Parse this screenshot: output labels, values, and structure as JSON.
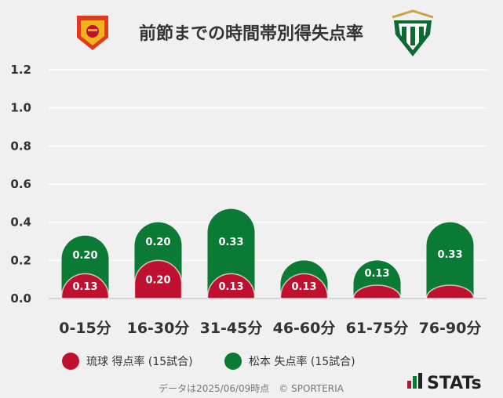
{
  "chart_data": {
    "type": "bar",
    "title": "前節までの時間帯別得失点率",
    "categories": [
      "0-15分",
      "16-30分",
      "31-45分",
      "46-60分",
      "61-75分",
      "76-90分"
    ],
    "series": [
      {
        "name": "琉球 得点率 (15試合)",
        "color": "#c0102f",
        "values": [
          0.13,
          0.2,
          0.13,
          0.13,
          0.07,
          0.07
        ],
        "labels": [
          "0.13",
          "0.20",
          "0.13",
          "0.13",
          "",
          ""
        ]
      },
      {
        "name": "松本 失点率 (15試合)",
        "color": "#0a7a35",
        "values": [
          0.33,
          0.4,
          0.47,
          0.2,
          0.2,
          0.4
        ],
        "labels": [
          "0.20",
          "0.20",
          "0.33",
          "",
          "0.13",
          "0.33"
        ]
      }
    ],
    "yticks": [
      "0.0",
      "0.2",
      "0.4",
      "0.6",
      "0.8",
      "1.0",
      "1.2"
    ],
    "ylim": [
      0,
      1.2
    ],
    "grid": true,
    "legend_position": "bottom"
  },
  "footer": "データは2025/06/09時点　© SPORTERIA",
  "brand": "STATs",
  "colors": {
    "background": "#f0f0f0",
    "grid": "#ffffff",
    "text": "#333333"
  }
}
